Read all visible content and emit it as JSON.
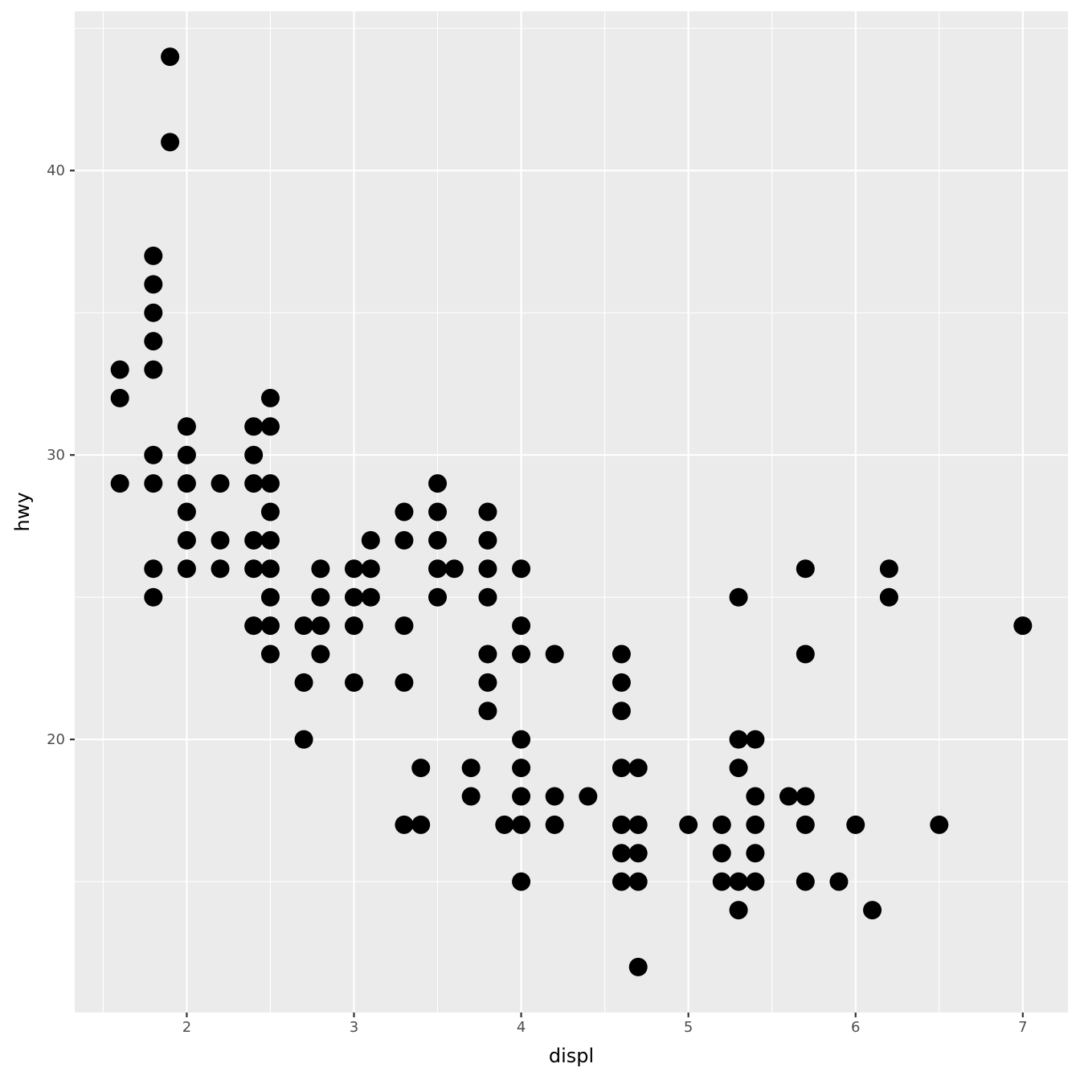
{
  "colors": {
    "panel_background": "#ebebeb",
    "grid": "#ffffff",
    "point": "#000000",
    "tick_text": "#4d4d4d"
  },
  "chart_data": {
    "type": "scatter",
    "xlabel": "displ",
    "ylabel": "hwy",
    "xlim": [
      1.33,
      7.27
    ],
    "ylim": [
      10.4,
      45.6
    ],
    "x_ticks": [
      2,
      3,
      4,
      5,
      6,
      7
    ],
    "x_tick_labels": [
      "2",
      "3",
      "4",
      "5",
      "6",
      "7"
    ],
    "x_minor_ticks": [
      1.5,
      2.5,
      3.5,
      4.5,
      5.5,
      6.5
    ],
    "y_ticks": [
      20,
      30,
      40
    ],
    "y_tick_labels": [
      "20",
      "30",
      "40"
    ],
    "y_minor_ticks": [
      15,
      25,
      35,
      45
    ],
    "grid": true,
    "legend": "none",
    "points": [
      [
        1.6,
        33
      ],
      [
        1.6,
        32
      ],
      [
        1.6,
        29
      ],
      [
        1.8,
        37
      ],
      [
        1.8,
        36
      ],
      [
        1.8,
        35
      ],
      [
        1.8,
        34
      ],
      [
        1.8,
        33
      ],
      [
        1.8,
        30
      ],
      [
        1.8,
        29
      ],
      [
        1.8,
        26
      ],
      [
        1.8,
        25
      ],
      [
        1.9,
        44
      ],
      [
        1.9,
        41
      ],
      [
        2.0,
        31
      ],
      [
        2.0,
        30
      ],
      [
        2.0,
        29
      ],
      [
        2.0,
        28
      ],
      [
        2.0,
        27
      ],
      [
        2.0,
        26
      ],
      [
        2.2,
        29
      ],
      [
        2.2,
        27
      ],
      [
        2.2,
        26
      ],
      [
        2.4,
        31
      ],
      [
        2.4,
        30
      ],
      [
        2.4,
        29
      ],
      [
        2.4,
        27
      ],
      [
        2.4,
        26
      ],
      [
        2.4,
        24
      ],
      [
        2.5,
        32
      ],
      [
        2.5,
        31
      ],
      [
        2.5,
        29
      ],
      [
        2.5,
        28
      ],
      [
        2.5,
        27
      ],
      [
        2.5,
        26
      ],
      [
        2.5,
        25
      ],
      [
        2.5,
        24
      ],
      [
        2.5,
        23
      ],
      [
        2.7,
        24
      ],
      [
        2.7,
        22
      ],
      [
        2.7,
        20
      ],
      [
        2.8,
        26
      ],
      [
        2.8,
        25
      ],
      [
        2.8,
        24
      ],
      [
        2.8,
        23
      ],
      [
        3.0,
        26
      ],
      [
        3.0,
        25
      ],
      [
        3.0,
        24
      ],
      [
        3.0,
        22
      ],
      [
        3.1,
        27
      ],
      [
        3.1,
        26
      ],
      [
        3.1,
        25
      ],
      [
        3.3,
        28
      ],
      [
        3.3,
        27
      ],
      [
        3.3,
        24
      ],
      [
        3.3,
        22
      ],
      [
        3.3,
        17
      ],
      [
        3.4,
        19
      ],
      [
        3.4,
        17
      ],
      [
        3.5,
        29
      ],
      [
        3.5,
        28
      ],
      [
        3.5,
        27
      ],
      [
        3.5,
        26
      ],
      [
        3.5,
        25
      ],
      [
        3.6,
        26
      ],
      [
        3.7,
        19
      ],
      [
        3.7,
        18
      ],
      [
        3.8,
        28
      ],
      [
        3.8,
        27
      ],
      [
        3.8,
        26
      ],
      [
        3.8,
        25
      ],
      [
        3.8,
        23
      ],
      [
        3.8,
        22
      ],
      [
        3.8,
        21
      ],
      [
        3.9,
        17
      ],
      [
        4.0,
        26
      ],
      [
        4.0,
        24
      ],
      [
        4.0,
        23
      ],
      [
        4.0,
        20
      ],
      [
        4.0,
        19
      ],
      [
        4.0,
        18
      ],
      [
        4.0,
        17
      ],
      [
        4.0,
        15
      ],
      [
        4.2,
        23
      ],
      [
        4.2,
        18
      ],
      [
        4.2,
        17
      ],
      [
        4.4,
        18
      ],
      [
        4.6,
        23
      ],
      [
        4.6,
        22
      ],
      [
        4.6,
        21
      ],
      [
        4.6,
        19
      ],
      [
        4.6,
        17
      ],
      [
        4.6,
        16
      ],
      [
        4.6,
        15
      ],
      [
        4.7,
        19
      ],
      [
        4.7,
        17
      ],
      [
        4.7,
        16
      ],
      [
        4.7,
        15
      ],
      [
        4.7,
        12
      ],
      [
        5.0,
        17
      ],
      [
        5.2,
        17
      ],
      [
        5.2,
        16
      ],
      [
        5.2,
        15
      ],
      [
        5.3,
        25
      ],
      [
        5.3,
        20
      ],
      [
        5.3,
        19
      ],
      [
        5.3,
        15
      ],
      [
        5.3,
        14
      ],
      [
        5.4,
        20
      ],
      [
        5.4,
        18
      ],
      [
        5.4,
        17
      ],
      [
        5.4,
        16
      ],
      [
        5.4,
        15
      ],
      [
        5.6,
        18
      ],
      [
        5.7,
        26
      ],
      [
        5.7,
        23
      ],
      [
        5.7,
        18
      ],
      [
        5.7,
        17
      ],
      [
        5.7,
        15
      ],
      [
        5.9,
        15
      ],
      [
        6.0,
        17
      ],
      [
        6.1,
        14
      ],
      [
        6.2,
        26
      ],
      [
        6.2,
        25
      ],
      [
        6.5,
        17
      ],
      [
        7.0,
        24
      ]
    ]
  }
}
